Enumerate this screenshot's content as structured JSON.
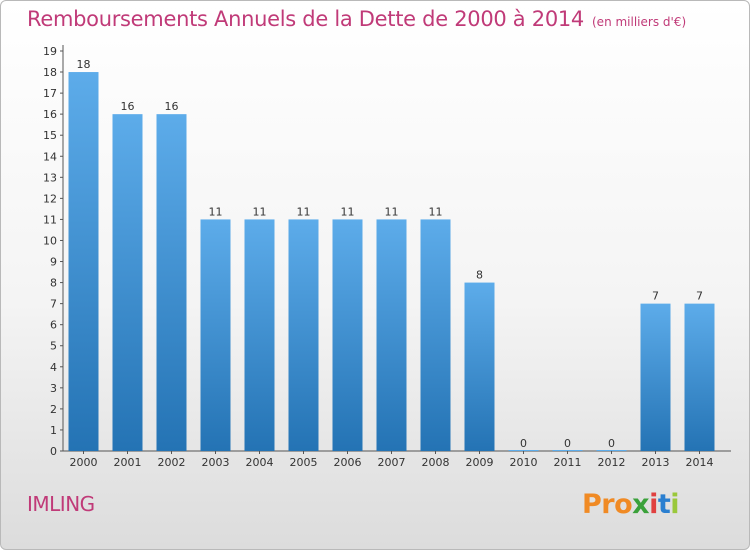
{
  "header": {
    "title": "Remboursements Annuels de la Dette de 2000 à 2014",
    "unit": "(en milliers d'€)"
  },
  "footer": {
    "commune": "IMLING",
    "logo_parts": [
      "Pro",
      "x",
      "i",
      "t",
      "i"
    ]
  },
  "colors": {
    "title": "#c03a78",
    "bar_top": "#5dacea",
    "bar_bottom": "#2473b4",
    "logo": [
      "#f08a24",
      "#3aa13a",
      "#e04040",
      "#2a7fd0",
      "#9ac83b"
    ]
  },
  "chart_data": {
    "type": "bar",
    "title": "Remboursements Annuels de la Dette de 2000 à 2014",
    "subtitle": "(en milliers d'€)",
    "categories": [
      "2000",
      "2001",
      "2002",
      "2003",
      "2004",
      "2005",
      "2006",
      "2007",
      "2008",
      "2009",
      "2010",
      "2011",
      "2012",
      "2013",
      "2014"
    ],
    "values": [
      18,
      16,
      16,
      11,
      11,
      11,
      11,
      11,
      11,
      8,
      0,
      0,
      0,
      7,
      7
    ],
    "ylim": [
      0,
      19
    ],
    "yticks": [
      "0",
      "1",
      "2",
      "3",
      "4",
      "5",
      "6",
      "7",
      "8",
      "9",
      "10",
      "11",
      "12",
      "13",
      "14",
      "15",
      "16",
      "17",
      "18",
      "19"
    ],
    "grid": false,
    "legend": "none"
  }
}
